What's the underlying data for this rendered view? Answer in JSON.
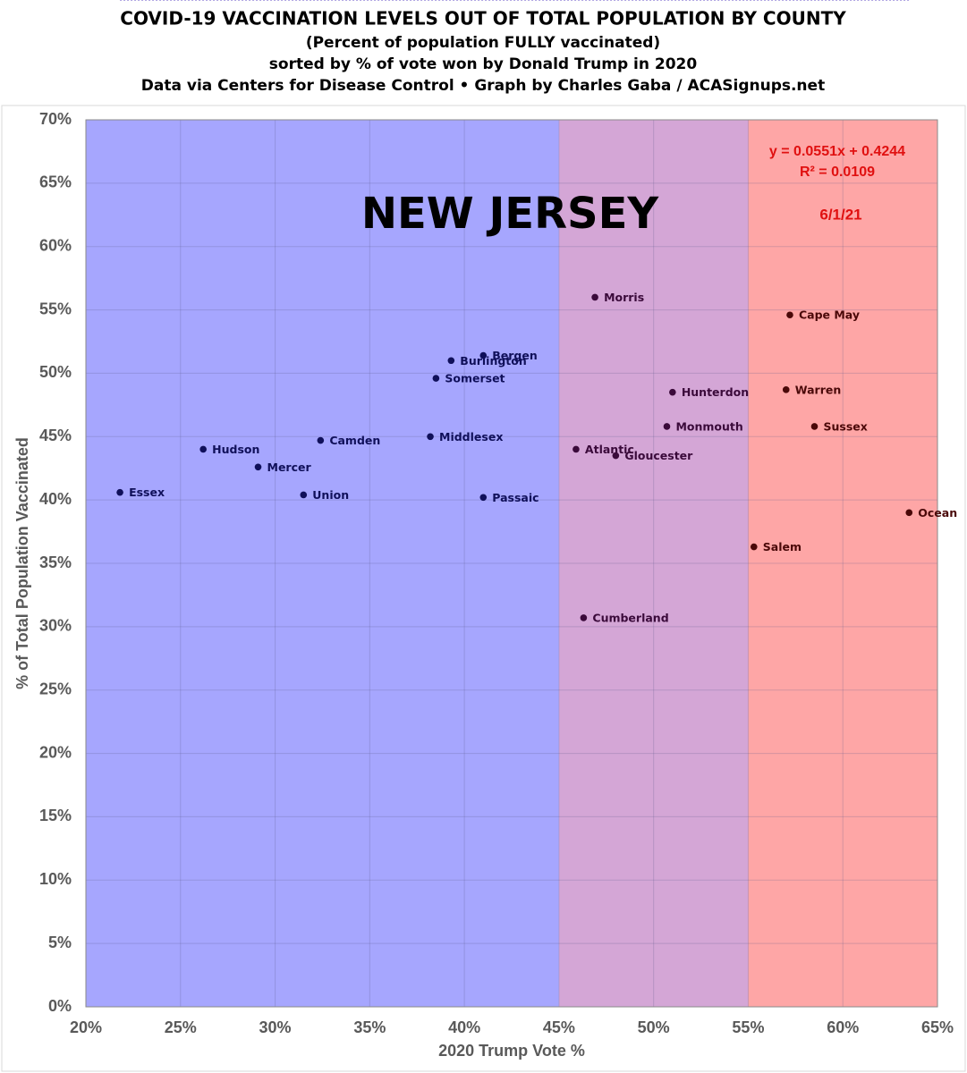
{
  "chart_data": {
    "type": "scatter",
    "title": "COVID-19 VACCINATION LEVELS OUT OF TOTAL POPULATION BY COUNTY",
    "subtitles": [
      "(Percent of population FULLY vaccinated)",
      "sorted by % of vote won by Donald Trump in 2020",
      "Data via Centers for Disease Control • Graph by Charles Gaba / ACASignups.net"
    ],
    "xlabel": "2020 Trump Vote %",
    "ylabel": "% of Total Population Vaccinated",
    "annotations": {
      "state": "NEW JERSEY",
      "equation": "y = 0.0551x + 0.4244",
      "r_squared": "R² = 0.0109",
      "date": "6/1/21"
    },
    "trendline_color": "#7f6fd0",
    "bands": [
      {
        "from": 20,
        "to": 45,
        "color": "#a6a6fe",
        "point_color": "#10105a"
      },
      {
        "from": 45,
        "to": 55,
        "color": "#d4a6d6",
        "point_color": "#3a0a3a"
      },
      {
        "from": 55,
        "to": 65,
        "color": "#fea6a6",
        "point_color": "#4a0808"
      }
    ],
    "points": [
      {
        "name": "Essex",
        "x": 21.8,
        "y": 40.6
      },
      {
        "name": "Hudson",
        "x": 26.2,
        "y": 44.0
      },
      {
        "name": "Mercer",
        "x": 29.1,
        "y": 42.6
      },
      {
        "name": "Union",
        "x": 31.5,
        "y": 40.4
      },
      {
        "name": "Camden",
        "x": 32.4,
        "y": 44.7
      },
      {
        "name": "Middlesex",
        "x": 38.2,
        "y": 45.0
      },
      {
        "name": "Somerset",
        "x": 38.5,
        "y": 49.6
      },
      {
        "name": "Burlington",
        "x": 39.3,
        "y": 51.0
      },
      {
        "name": "Bergen",
        "x": 41.0,
        "y": 51.4
      },
      {
        "name": "Passaic",
        "x": 41.0,
        "y": 40.2
      },
      {
        "name": "Atlantic",
        "x": 45.9,
        "y": 44.0
      },
      {
        "name": "Gloucester",
        "x": 48.0,
        "y": 43.5
      },
      {
        "name": "Cumberland",
        "x": 46.3,
        "y": 30.7
      },
      {
        "name": "Morris",
        "x": 46.9,
        "y": 56.0
      },
      {
        "name": "Monmouth",
        "x": 50.7,
        "y": 45.8
      },
      {
        "name": "Hunterdon",
        "x": 51.0,
        "y": 48.5
      },
      {
        "name": "Salem",
        "x": 55.3,
        "y": 36.3
      },
      {
        "name": "Cape May",
        "x": 57.2,
        "y": 54.6
      },
      {
        "name": "Warren",
        "x": 57.0,
        "y": 48.7
      },
      {
        "name": "Sussex",
        "x": 58.5,
        "y": 45.8
      },
      {
        "name": "Ocean",
        "x": 63.5,
        "y": 39.0
      }
    ],
    "xlim": [
      20,
      65
    ],
    "ylim": [
      0,
      70
    ],
    "xticks": [
      {
        "value": 20,
        "label": "20%"
      },
      {
        "value": 25,
        "label": "25%"
      },
      {
        "value": 30,
        "label": "30%"
      },
      {
        "value": 35,
        "label": "35%"
      },
      {
        "value": 40,
        "label": "40%"
      },
      {
        "value": 45,
        "label": "45%"
      },
      {
        "value": 50,
        "label": "50%"
      },
      {
        "value": 55,
        "label": "55%"
      },
      {
        "value": 60,
        "label": "60%"
      },
      {
        "value": 65,
        "label": "65%"
      }
    ],
    "yticks": [
      {
        "value": 0,
        "label": "0%"
      },
      {
        "value": 5,
        "label": "5%"
      },
      {
        "value": 10,
        "label": "10%"
      },
      {
        "value": 15,
        "label": "15%"
      },
      {
        "value": 20,
        "label": "20%"
      },
      {
        "value": 25,
        "label": "25%"
      },
      {
        "value": 30,
        "label": "30%"
      },
      {
        "value": 35,
        "label": "35%"
      },
      {
        "value": 40,
        "label": "40%"
      },
      {
        "value": 45,
        "label": "45%"
      },
      {
        "value": 50,
        "label": "50%"
      },
      {
        "value": 55,
        "label": "55%"
      },
      {
        "value": 60,
        "label": "60%"
      },
      {
        "value": 65,
        "label": "65%"
      },
      {
        "value": 70,
        "label": "70%"
      }
    ],
    "grid": true
  }
}
